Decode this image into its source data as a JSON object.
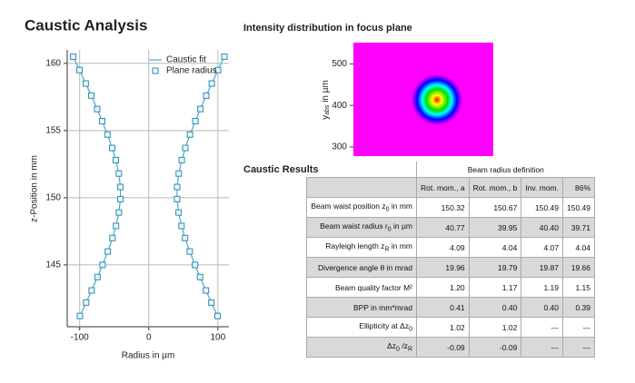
{
  "title": "Caustic Analysis",
  "chart_data": [
    {
      "type": "scatter",
      "xlabel": "Radius in µm",
      "ylabel": "z-Position in mm",
      "xlim": [
        -118,
        116
      ],
      "ylim": [
        140.4,
        161
      ],
      "xticks": [
        -100,
        0,
        100
      ],
      "yticks": [
        145,
        150,
        155,
        160
      ],
      "grid": true,
      "legend": "upper right",
      "series": [
        {
          "name": "Caustic fit",
          "style": "line",
          "color": "#4fa9c6",
          "x": [
            -109.4,
            -100.2,
            -91.2,
            -83.2,
            -74.7,
            -67.4,
            -59.7,
            -52.9,
            -47.7,
            -43.4,
            -41.0,
            -41.0,
            -43.2,
            -47.4,
            -52.5,
            -59.3,
            -66.9,
            -74.2,
            -82.7,
            -90.6,
            -99.6,
            null,
            109.4,
            100.2,
            91.2,
            83.2,
            74.7,
            67.4,
            59.7,
            52.9,
            47.7,
            43.4,
            41.0,
            41.0,
            43.2,
            47.4,
            52.5,
            59.3,
            66.9,
            74.2,
            82.7,
            90.6,
            99.6
          ],
          "values": [
            160.5,
            159.5,
            158.5,
            157.6,
            156.6,
            155.7,
            154.7,
            153.7,
            152.8,
            151.8,
            150.8,
            149.9,
            148.9,
            147.9,
            147.0,
            146.0,
            145.0,
            144.1,
            143.1,
            142.2,
            141.2,
            null,
            160.5,
            159.5,
            158.5,
            157.6,
            156.6,
            155.7,
            154.7,
            153.7,
            152.8,
            151.8,
            150.8,
            149.9,
            148.9,
            147.9,
            147.0,
            146.0,
            145.0,
            144.1,
            143.1,
            142.2,
            141.2
          ]
        },
        {
          "name": "Plane radius",
          "style": "square",
          "color": "#2e8db0",
          "x": [
            -109.4,
            -100.2,
            -91.2,
            -83.2,
            -74.7,
            -67.4,
            -59.7,
            -52.9,
            -47.7,
            -43.4,
            -41.0,
            -41.0,
            -43.2,
            -47.4,
            -52.5,
            -59.3,
            -66.9,
            -74.2,
            -82.7,
            -90.6,
            -99.6,
            109.4,
            100.2,
            91.2,
            83.2,
            74.7,
            67.4,
            59.7,
            52.9,
            47.7,
            43.4,
            41.0,
            41.0,
            43.2,
            47.4,
            52.5,
            59.3,
            66.9,
            74.2,
            82.7,
            90.6,
            99.6
          ],
          "values": [
            160.5,
            159.5,
            158.5,
            157.6,
            156.6,
            155.7,
            154.7,
            153.7,
            152.8,
            151.8,
            150.8,
            149.9,
            148.9,
            147.9,
            147.0,
            146.0,
            145.0,
            144.1,
            143.1,
            142.2,
            141.2,
            160.5,
            159.5,
            158.5,
            157.6,
            156.6,
            155.7,
            154.7,
            153.7,
            152.8,
            151.8,
            150.8,
            149.9,
            148.9,
            147.9,
            147.0,
            146.0,
            145.0,
            144.1,
            143.1,
            142.2,
            141.2
          ]
        }
      ]
    },
    {
      "type": "heatmap",
      "title": "Intensity distribution in focus plane",
      "ylabel": [
        "y",
        "abs",
        " in µm"
      ],
      "ylim": [
        278,
        551
      ],
      "yticks": [
        300,
        400,
        500
      ],
      "colors": [
        "#ff0000",
        "#ffff00",
        "#00e000",
        "#00ffff",
        "#0000ff",
        "#ff00ff"
      ]
    }
  ],
  "results": {
    "title": "Caustic Results",
    "group": "Beam radius definition",
    "columns": [
      "Rot. mom., a",
      "Rot. mom., b",
      "Inv. mom.",
      "86%"
    ],
    "rows": [
      {
        "label": [
          "Beam waist position z",
          "0",
          "  in mm"
        ],
        "cells": [
          "150.32",
          "150.67",
          "150.49",
          "150.49"
        ]
      },
      {
        "label": [
          "Beam waist radius r",
          "0",
          "  in µm"
        ],
        "cells": [
          "40.77",
          "39.95",
          "40.40",
          "39.71"
        ]
      },
      {
        "label": [
          "Rayleigh length z",
          "R",
          " in mm"
        ],
        "cells": [
          "4.09",
          "4.04",
          "4.07",
          "4.04"
        ]
      },
      {
        "label": [
          "Divergence angle θ in mrad"
        ],
        "cells": [
          "19.96",
          "19.79",
          "19.87",
          "19.66"
        ]
      },
      {
        "label": [
          "Beam quality factor M²"
        ],
        "cells": [
          "1.20",
          "1.17",
          "1.19",
          "1.15"
        ]
      },
      {
        "label": [
          "BPP in mm*mrad"
        ],
        "cells": [
          "0.41",
          "0.40",
          "0.40",
          "0.39"
        ]
      },
      {
        "label": [
          "Ellipticity at Δz",
          "0"
        ],
        "cells": [
          "1.02",
          "1.02",
          "---",
          "---"
        ]
      },
      {
        "label": [
          "Δz",
          "0",
          " /z",
          "R"
        ],
        "cells": [
          "-0.09",
          "-0.09",
          "---",
          "---"
        ]
      }
    ]
  }
}
